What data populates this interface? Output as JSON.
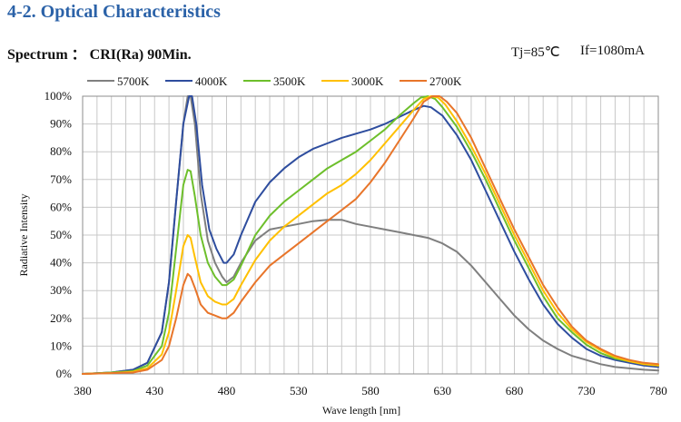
{
  "header": {
    "section_title": "4-2. Optical Characteristics",
    "spectrum_label": "Spectrum ： CRI(Ra) 90Min.",
    "tj": "Tj=85℃",
    "if_current": "If=1080mA"
  },
  "chart_data": {
    "type": "line",
    "xlabel": "Wave length [nm]",
    "ylabel": "Radiative Intensity",
    "xlim": [
      380,
      780
    ],
    "ylim": [
      0,
      100
    ],
    "x_ticks": [
      380,
      430,
      480,
      530,
      580,
      630,
      680,
      730,
      780
    ],
    "y_ticks": [
      "0%",
      "10%",
      "20%",
      "30%",
      "40%",
      "50%",
      "60%",
      "70%",
      "80%",
      "90%",
      "100%"
    ],
    "grid": true,
    "legend_position": "top",
    "series": [
      {
        "name": "5700K",
        "color": "#7f7f7f",
        "points": [
          [
            380,
            0
          ],
          [
            400,
            0.5
          ],
          [
            415,
            1.5
          ],
          [
            425,
            4
          ],
          [
            435,
            15
          ],
          [
            440,
            33
          ],
          [
            445,
            62
          ],
          [
            450,
            90
          ],
          [
            453,
            100
          ],
          [
            455,
            100
          ],
          [
            458,
            90
          ],
          [
            462,
            65
          ],
          [
            467,
            48
          ],
          [
            472,
            40
          ],
          [
            477,
            35
          ],
          [
            480,
            33
          ],
          [
            485,
            35
          ],
          [
            490,
            40
          ],
          [
            500,
            48
          ],
          [
            510,
            52
          ],
          [
            520,
            53
          ],
          [
            530,
            54
          ],
          [
            540,
            55
          ],
          [
            550,
            55.5
          ],
          [
            560,
            55.5
          ],
          [
            570,
            54
          ],
          [
            580,
            53
          ],
          [
            590,
            52
          ],
          [
            600,
            51
          ],
          [
            610,
            50
          ],
          [
            620,
            49
          ],
          [
            630,
            47
          ],
          [
            640,
            44
          ],
          [
            650,
            39
          ],
          [
            660,
            33
          ],
          [
            670,
            27
          ],
          [
            680,
            21
          ],
          [
            690,
            16
          ],
          [
            700,
            12
          ],
          [
            710,
            9
          ],
          [
            720,
            6.5
          ],
          [
            730,
            5
          ],
          [
            740,
            3.5
          ],
          [
            750,
            2.5
          ],
          [
            760,
            2
          ],
          [
            770,
            1.5
          ],
          [
            780,
            1.2
          ]
        ]
      },
      {
        "name": "4000K",
        "color": "#2e4d9e",
        "points": [
          [
            380,
            0
          ],
          [
            400,
            0.5
          ],
          [
            415,
            1.5
          ],
          [
            425,
            4
          ],
          [
            435,
            15
          ],
          [
            440,
            33
          ],
          [
            445,
            62
          ],
          [
            450,
            90
          ],
          [
            454,
            100
          ],
          [
            456,
            100
          ],
          [
            459,
            90
          ],
          [
            463,
            68
          ],
          [
            468,
            52
          ],
          [
            473,
            45
          ],
          [
            478,
            40
          ],
          [
            480,
            40
          ],
          [
            485,
            43
          ],
          [
            490,
            50
          ],
          [
            500,
            62
          ],
          [
            510,
            69
          ],
          [
            520,
            74
          ],
          [
            530,
            78
          ],
          [
            540,
            81
          ],
          [
            550,
            83
          ],
          [
            560,
            85
          ],
          [
            570,
            86.5
          ],
          [
            580,
            88
          ],
          [
            590,
            90
          ],
          [
            600,
            92.5
          ],
          [
            610,
            95
          ],
          [
            617,
            96.5
          ],
          [
            622,
            96
          ],
          [
            630,
            93
          ],
          [
            640,
            86
          ],
          [
            650,
            77
          ],
          [
            660,
            66
          ],
          [
            670,
            55
          ],
          [
            680,
            44
          ],
          [
            690,
            34
          ],
          [
            700,
            25
          ],
          [
            710,
            18
          ],
          [
            720,
            13
          ],
          [
            730,
            9
          ],
          [
            740,
            6.5
          ],
          [
            750,
            5
          ],
          [
            760,
            4
          ],
          [
            770,
            3
          ],
          [
            780,
            2.5
          ]
        ]
      },
      {
        "name": "3500K",
        "color": "#6dbf2b",
        "points": [
          [
            380,
            0
          ],
          [
            400,
            0.5
          ],
          [
            415,
            1
          ],
          [
            425,
            3
          ],
          [
            435,
            10
          ],
          [
            440,
            22
          ],
          [
            445,
            45
          ],
          [
            450,
            68
          ],
          [
            453,
            73.5
          ],
          [
            455,
            73
          ],
          [
            458,
            64
          ],
          [
            462,
            50
          ],
          [
            467,
            40
          ],
          [
            472,
            35
          ],
          [
            477,
            32
          ],
          [
            480,
            32
          ],
          [
            485,
            34
          ],
          [
            490,
            39
          ],
          [
            500,
            50
          ],
          [
            510,
            57
          ],
          [
            520,
            62
          ],
          [
            530,
            66
          ],
          [
            540,
            70
          ],
          [
            550,
            74
          ],
          [
            560,
            77
          ],
          [
            570,
            80
          ],
          [
            580,
            84
          ],
          [
            590,
            88
          ],
          [
            600,
            93
          ],
          [
            610,
            97.5
          ],
          [
            615,
            99.5
          ],
          [
            620,
            100
          ],
          [
            625,
            99
          ],
          [
            630,
            96
          ],
          [
            640,
            89
          ],
          [
            650,
            80
          ],
          [
            660,
            70
          ],
          [
            670,
            59
          ],
          [
            680,
            48
          ],
          [
            690,
            38
          ],
          [
            700,
            28
          ],
          [
            710,
            20
          ],
          [
            720,
            15
          ],
          [
            730,
            10.5
          ],
          [
            740,
            7.5
          ],
          [
            750,
            5.5
          ],
          [
            760,
            4.5
          ],
          [
            770,
            3.5
          ],
          [
            780,
            3
          ]
        ]
      },
      {
        "name": "3000K",
        "color": "#ffc000",
        "points": [
          [
            380,
            0
          ],
          [
            400,
            0.3
          ],
          [
            415,
            0.8
          ],
          [
            425,
            2
          ],
          [
            435,
            7
          ],
          [
            440,
            15
          ],
          [
            445,
            30
          ],
          [
            450,
            46
          ],
          [
            453,
            50
          ],
          [
            455,
            49
          ],
          [
            458,
            42
          ],
          [
            462,
            33
          ],
          [
            467,
            28
          ],
          [
            472,
            26
          ],
          [
            477,
            25
          ],
          [
            480,
            25
          ],
          [
            485,
            27
          ],
          [
            490,
            32
          ],
          [
            500,
            41
          ],
          [
            510,
            48
          ],
          [
            520,
            53
          ],
          [
            530,
            57
          ],
          [
            540,
            61
          ],
          [
            550,
            65
          ],
          [
            560,
            68
          ],
          [
            570,
            72
          ],
          [
            580,
            77
          ],
          [
            590,
            83
          ],
          [
            600,
            89
          ],
          [
            610,
            95
          ],
          [
            617,
            99
          ],
          [
            622,
            100
          ],
          [
            627,
            99.5
          ],
          [
            632,
            97
          ],
          [
            640,
            91
          ],
          [
            650,
            82
          ],
          [
            660,
            72
          ],
          [
            670,
            61
          ],
          [
            680,
            50
          ],
          [
            690,
            40
          ],
          [
            700,
            30
          ],
          [
            710,
            22
          ],
          [
            720,
            16
          ],
          [
            730,
            11.5
          ],
          [
            740,
            8.5
          ],
          [
            750,
            6
          ],
          [
            760,
            4.5
          ],
          [
            770,
            3.5
          ],
          [
            780,
            3
          ]
        ]
      },
      {
        "name": "2700K",
        "color": "#e8752a",
        "points": [
          [
            380,
            0
          ],
          [
            400,
            0.3
          ],
          [
            415,
            0.5
          ],
          [
            425,
            1.5
          ],
          [
            435,
            5
          ],
          [
            440,
            10
          ],
          [
            445,
            20
          ],
          [
            450,
            32
          ],
          [
            453,
            36
          ],
          [
            455,
            35
          ],
          [
            458,
            31
          ],
          [
            462,
            25
          ],
          [
            467,
            22
          ],
          [
            472,
            21
          ],
          [
            477,
            20
          ],
          [
            480,
            20
          ],
          [
            485,
            22
          ],
          [
            490,
            26
          ],
          [
            500,
            33
          ],
          [
            510,
            39
          ],
          [
            520,
            43
          ],
          [
            530,
            47
          ],
          [
            540,
            51
          ],
          [
            550,
            55
          ],
          [
            560,
            59
          ],
          [
            570,
            63
          ],
          [
            580,
            69
          ],
          [
            590,
            76
          ],
          [
            600,
            84
          ],
          [
            610,
            92
          ],
          [
            617,
            98
          ],
          [
            623,
            100
          ],
          [
            628,
            100
          ],
          [
            633,
            98
          ],
          [
            640,
            94
          ],
          [
            650,
            85
          ],
          [
            660,
            74
          ],
          [
            670,
            63
          ],
          [
            680,
            52
          ],
          [
            690,
            42
          ],
          [
            700,
            32
          ],
          [
            710,
            24
          ],
          [
            720,
            17
          ],
          [
            730,
            12
          ],
          [
            740,
            9
          ],
          [
            750,
            6.5
          ],
          [
            760,
            5
          ],
          [
            770,
            4
          ],
          [
            780,
            3.5
          ]
        ]
      }
    ]
  }
}
